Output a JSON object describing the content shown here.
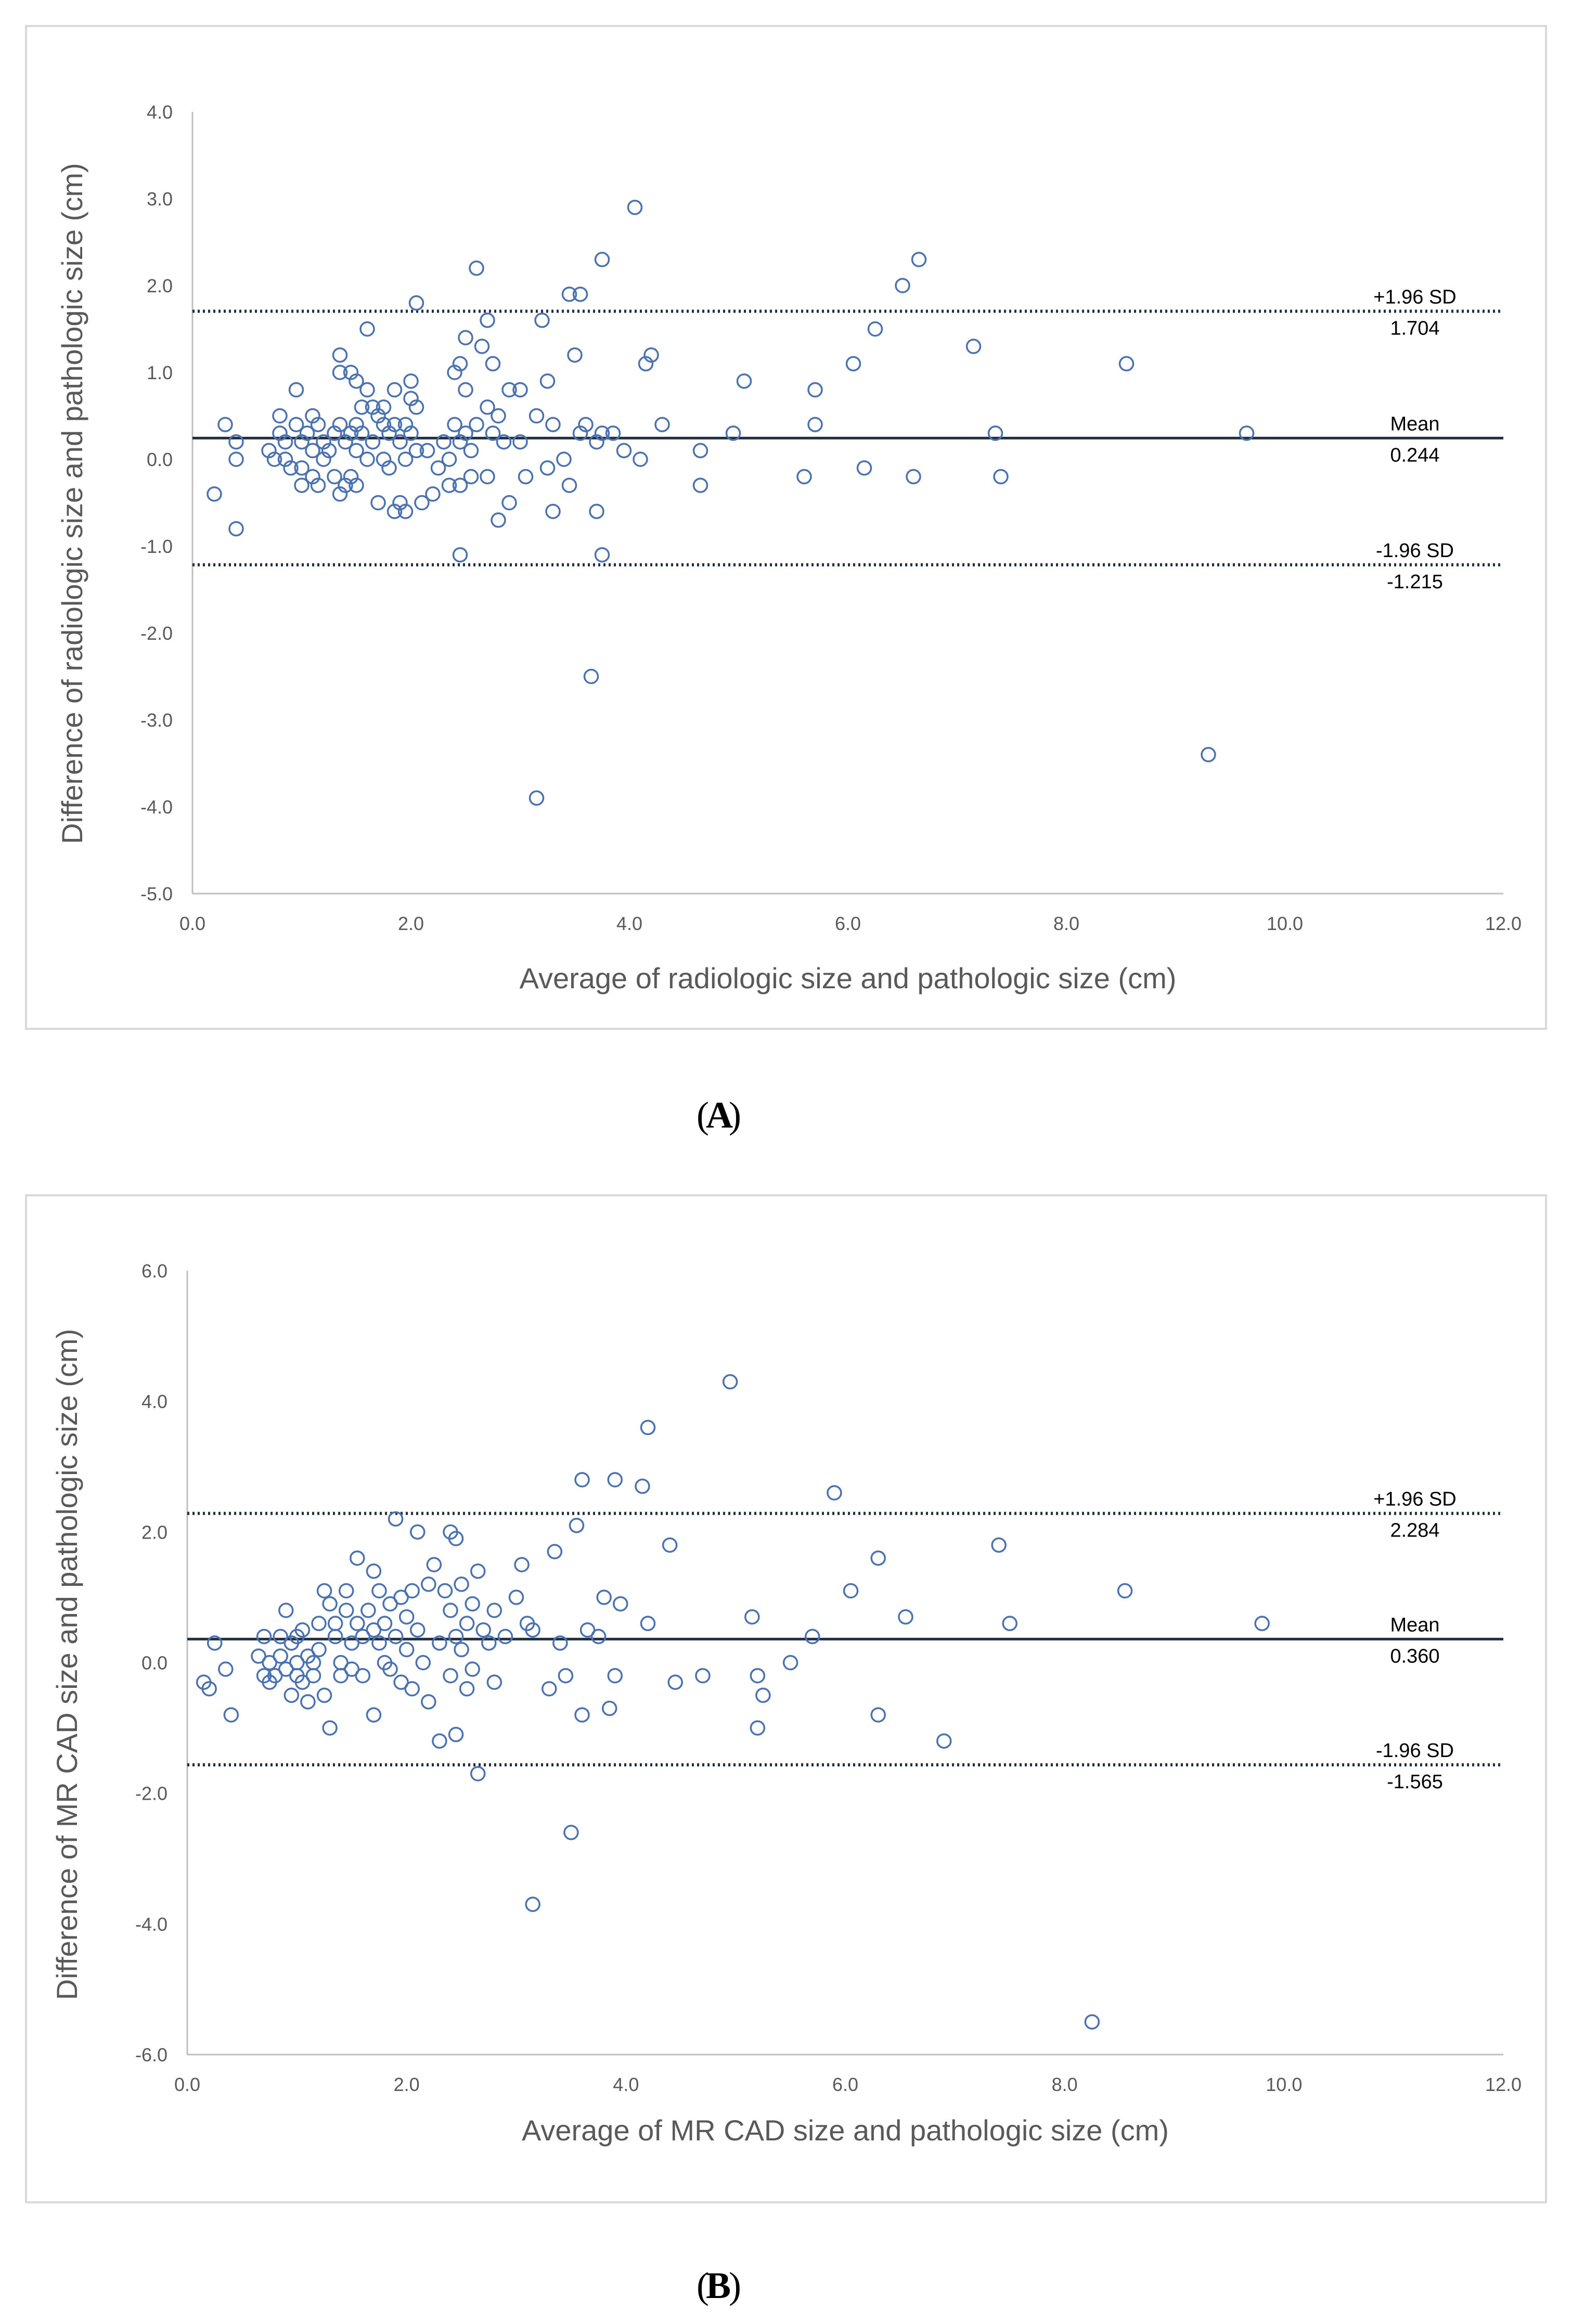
{
  "colors": {
    "marker": "#4a72b0",
    "mean_line": "#1f2d40",
    "limit_line": "#1f2d40",
    "axis": "#bfbfbf",
    "frame": "#d9d9d9"
  },
  "chart_data": [
    {
      "type": "scatter",
      "panel_label": "A",
      "xlabel": "Average of radiologic size and pathologic size (cm)",
      "ylabel": "Difference of radiologic size and pathologic size  (cm)",
      "xlim": [
        0,
        12
      ],
      "ylim": [
        -5,
        4
      ],
      "xticks": [
        0,
        2,
        4,
        6,
        8,
        10,
        12
      ],
      "yticks": [
        4,
        3,
        2,
        1,
        0,
        -1,
        -2,
        -3,
        -4,
        -5
      ],
      "reference_lines": [
        {
          "name": "upper",
          "label": "+1.96 SD",
          "value_label": "1.704",
          "value": 1.704
        },
        {
          "name": "mean",
          "label": "Mean",
          "value_label": "0.244",
          "value": 0.244
        },
        {
          "name": "lower",
          "label": "-1.96 SD",
          "value_label": "-1.215",
          "value": -1.215
        }
      ],
      "points": [
        [
          0.2,
          -0.4
        ],
        [
          0.3,
          0.4
        ],
        [
          0.4,
          0.2
        ],
        [
          0.4,
          0.0
        ],
        [
          0.4,
          -0.8
        ],
        [
          0.7,
          0.1
        ],
        [
          0.75,
          0.0
        ],
        [
          0.8,
          0.3
        ],
        [
          0.8,
          0.5
        ],
        [
          0.85,
          0.2
        ],
        [
          0.85,
          0.0
        ],
        [
          0.9,
          -0.1
        ],
        [
          0.95,
          0.8
        ],
        [
          0.95,
          0.4
        ],
        [
          1.0,
          0.2
        ],
        [
          1.0,
          -0.1
        ],
        [
          1.0,
          -0.3
        ],
        [
          1.05,
          0.3
        ],
        [
          1.1,
          0.5
        ],
        [
          1.1,
          0.1
        ],
        [
          1.1,
          -0.2
        ],
        [
          1.15,
          0.4
        ],
        [
          1.15,
          -0.3
        ],
        [
          1.2,
          0.2
        ],
        [
          1.2,
          0.0
        ],
        [
          1.25,
          0.1
        ],
        [
          1.3,
          0.3
        ],
        [
          1.3,
          -0.2
        ],
        [
          1.35,
          1.2
        ],
        [
          1.35,
          1.0
        ],
        [
          1.35,
          0.4
        ],
        [
          1.35,
          -0.4
        ],
        [
          1.4,
          0.2
        ],
        [
          1.4,
          -0.3
        ],
        [
          1.45,
          1.0
        ],
        [
          1.45,
          0.3
        ],
        [
          1.45,
          -0.2
        ],
        [
          1.5,
          0.9
        ],
        [
          1.5,
          0.4
        ],
        [
          1.5,
          0.1
        ],
        [
          1.5,
          -0.3
        ],
        [
          1.55,
          0.6
        ],
        [
          1.55,
          0.3
        ],
        [
          1.6,
          1.5
        ],
        [
          1.6,
          0.8
        ],
        [
          1.6,
          0.0
        ],
        [
          1.65,
          0.6
        ],
        [
          1.65,
          0.2
        ],
        [
          1.7,
          0.5
        ],
        [
          1.7,
          -0.5
        ],
        [
          1.75,
          0.6
        ],
        [
          1.75,
          0.4
        ],
        [
          1.75,
          0.0
        ],
        [
          1.8,
          0.3
        ],
        [
          1.8,
          -0.1
        ],
        [
          1.85,
          0.8
        ],
        [
          1.85,
          0.4
        ],
        [
          1.85,
          -0.6
        ],
        [
          1.9,
          0.2
        ],
        [
          1.9,
          -0.5
        ],
        [
          1.95,
          0.4
        ],
        [
          1.95,
          0.0
        ],
        [
          1.95,
          -0.6
        ],
        [
          2.0,
          0.9
        ],
        [
          2.0,
          0.7
        ],
        [
          2.0,
          0.3
        ],
        [
          2.05,
          1.8
        ],
        [
          2.05,
          0.6
        ],
        [
          2.05,
          0.1
        ],
        [
          2.1,
          -0.5
        ],
        [
          2.15,
          0.1
        ],
        [
          2.2,
          -0.4
        ],
        [
          2.25,
          -0.1
        ],
        [
          2.3,
          0.2
        ],
        [
          2.35,
          0.0
        ],
        [
          2.35,
          -0.3
        ],
        [
          2.4,
          1.0
        ],
        [
          2.4,
          0.4
        ],
        [
          2.45,
          1.1
        ],
        [
          2.45,
          0.2
        ],
        [
          2.45,
          -0.3
        ],
        [
          2.5,
          1.4
        ],
        [
          2.5,
          0.8
        ],
        [
          2.5,
          0.3
        ],
        [
          2.55,
          0.1
        ],
        [
          2.55,
          -0.2
        ],
        [
          2.6,
          2.2
        ],
        [
          2.6,
          0.4
        ],
        [
          2.65,
          1.3
        ],
        [
          2.7,
          1.6
        ],
        [
          2.7,
          0.6
        ],
        [
          2.7,
          -0.2
        ],
        [
          2.75,
          1.1
        ],
        [
          2.75,
          0.3
        ],
        [
          2.8,
          0.5
        ],
        [
          2.8,
          -0.7
        ],
        [
          2.85,
          0.2
        ],
        [
          2.9,
          0.8
        ],
        [
          2.9,
          -0.5
        ],
        [
          3.0,
          0.8
        ],
        [
          3.0,
          0.2
        ],
        [
          3.05,
          -0.2
        ],
        [
          3.15,
          0.5
        ],
        [
          3.2,
          1.6
        ],
        [
          3.25,
          0.9
        ],
        [
          3.25,
          -0.1
        ],
        [
          3.3,
          0.4
        ],
        [
          3.3,
          -0.6
        ],
        [
          3.4,
          0.0
        ],
        [
          3.45,
          1.9
        ],
        [
          3.45,
          -0.3
        ],
        [
          3.5,
          1.2
        ],
        [
          3.55,
          1.9
        ],
        [
          3.55,
          0.3
        ],
        [
          3.6,
          0.4
        ],
        [
          3.7,
          0.2
        ],
        [
          3.7,
          -0.6
        ],
        [
          3.75,
          2.3
        ],
        [
          3.75,
          0.3
        ],
        [
          3.75,
          -1.1
        ],
        [
          3.85,
          0.3
        ],
        [
          3.95,
          0.1
        ],
        [
          4.05,
          2.9
        ],
        [
          4.1,
          0.0
        ],
        [
          4.15,
          1.1
        ],
        [
          4.2,
          1.2
        ],
        [
          4.3,
          0.4
        ],
        [
          2.45,
          -1.1
        ],
        [
          3.15,
          -3.9
        ],
        [
          3.65,
          -2.5
        ],
        [
          4.65,
          0.1
        ],
        [
          4.65,
          -0.3
        ],
        [
          4.95,
          0.3
        ],
        [
          5.05,
          0.9
        ],
        [
          5.6,
          -0.2
        ],
        [
          5.7,
          0.8
        ],
        [
          5.7,
          0.4
        ],
        [
          6.05,
          1.1
        ],
        [
          6.15,
          -0.1
        ],
        [
          6.25,
          1.5
        ],
        [
          6.5,
          2.0
        ],
        [
          6.6,
          -0.2
        ],
        [
          6.65,
          2.3
        ],
        [
          7.15,
          1.3
        ],
        [
          7.35,
          0.3
        ],
        [
          7.4,
          -0.2
        ],
        [
          8.55,
          1.1
        ],
        [
          9.3,
          -3.4
        ],
        [
          9.65,
          0.3
        ]
      ]
    },
    {
      "type": "scatter",
      "panel_label": "B",
      "xlabel": "Average of MR CAD size and pathologic size (cm)",
      "ylabel": "Difference of MR CAD size and pathologic size (cm)",
      "xlim": [
        0,
        12
      ],
      "ylim": [
        -6,
        6
      ],
      "xticks": [
        0,
        2,
        4,
        6,
        8,
        10,
        12
      ],
      "yticks": [
        6,
        4,
        2,
        0,
        -2,
        -4,
        -6
      ],
      "reference_lines": [
        {
          "name": "upper",
          "label": "+1.96 SD",
          "value_label": "2.284",
          "value": 2.284
        },
        {
          "name": "mean",
          "label": "Mean",
          "value_label": "0.360",
          "value": 0.36
        },
        {
          "name": "lower",
          "label": "-1.96 SD",
          "value_label": "-1.565",
          "value": -1.565
        }
      ],
      "points": [
        [
          0.15,
          -0.3
        ],
        [
          0.2,
          -0.4
        ],
        [
          0.25,
          0.3
        ],
        [
          0.35,
          -0.1
        ],
        [
          0.4,
          -0.8
        ],
        [
          0.65,
          0.1
        ],
        [
          0.7,
          0.4
        ],
        [
          0.7,
          -0.2
        ],
        [
          0.75,
          0.0
        ],
        [
          0.75,
          -0.3
        ],
        [
          0.8,
          -0.2
        ],
        [
          0.85,
          0.4
        ],
        [
          0.85,
          0.1
        ],
        [
          0.9,
          0.8
        ],
        [
          0.9,
          -0.1
        ],
        [
          0.95,
          0.3
        ],
        [
          0.95,
          -0.5
        ],
        [
          1.0,
          0.4
        ],
        [
          1.0,
          0.0
        ],
        [
          1.0,
          -0.2
        ],
        [
          1.05,
          0.5
        ],
        [
          1.05,
          -0.3
        ],
        [
          1.1,
          0.1
        ],
        [
          1.1,
          -0.6
        ],
        [
          1.15,
          0.0
        ],
        [
          1.15,
          -0.2
        ],
        [
          1.2,
          0.2
        ],
        [
          1.2,
          0.6
        ],
        [
          1.25,
          1.1
        ],
        [
          1.25,
          -0.5
        ],
        [
          1.3,
          0.9
        ],
        [
          1.3,
          -1.0
        ],
        [
          1.35,
          0.4
        ],
        [
          1.35,
          0.6
        ],
        [
          1.4,
          0.0
        ],
        [
          1.4,
          -0.2
        ],
        [
          1.45,
          0.8
        ],
        [
          1.45,
          1.1
        ],
        [
          1.5,
          0.3
        ],
        [
          1.5,
          -0.1
        ],
        [
          1.55,
          1.6
        ],
        [
          1.55,
          0.6
        ],
        [
          1.6,
          0.4
        ],
        [
          1.6,
          -0.2
        ],
        [
          1.65,
          0.8
        ],
        [
          1.7,
          1.4
        ],
        [
          1.7,
          0.5
        ],
        [
          1.7,
          -0.8
        ],
        [
          1.75,
          1.1
        ],
        [
          1.75,
          0.3
        ],
        [
          1.8,
          0.6
        ],
        [
          1.8,
          0.0
        ],
        [
          1.85,
          0.9
        ],
        [
          1.85,
          -0.1
        ],
        [
          1.9,
          2.2
        ],
        [
          1.9,
          0.4
        ],
        [
          1.95,
          1.0
        ],
        [
          1.95,
          -0.3
        ],
        [
          2.0,
          0.7
        ],
        [
          2.0,
          0.2
        ],
        [
          2.05,
          1.1
        ],
        [
          2.05,
          -0.4
        ],
        [
          2.1,
          2.0
        ],
        [
          2.1,
          0.5
        ],
        [
          2.15,
          0.0
        ],
        [
          2.2,
          1.2
        ],
        [
          2.2,
          -0.6
        ],
        [
          2.25,
          1.5
        ],
        [
          2.3,
          0.3
        ],
        [
          2.3,
          -1.2
        ],
        [
          2.35,
          1.1
        ],
        [
          2.4,
          2.0
        ],
        [
          2.4,
          0.8
        ],
        [
          2.4,
          -0.2
        ],
        [
          2.45,
          1.9
        ],
        [
          2.45,
          0.4
        ],
        [
          2.45,
          -1.1
        ],
        [
          2.5,
          1.2
        ],
        [
          2.5,
          0.2
        ],
        [
          2.55,
          0.6
        ],
        [
          2.55,
          -0.4
        ],
        [
          2.6,
          0.9
        ],
        [
          2.6,
          -0.1
        ],
        [
          2.65,
          1.4
        ],
        [
          2.65,
          -1.7
        ],
        [
          2.7,
          0.5
        ],
        [
          2.75,
          0.3
        ],
        [
          2.8,
          0.8
        ],
        [
          2.8,
          -0.3
        ],
        [
          2.9,
          0.4
        ],
        [
          3.0,
          1.0
        ],
        [
          3.05,
          1.5
        ],
        [
          3.1,
          0.6
        ],
        [
          3.15,
          0.5
        ],
        [
          3.15,
          -3.7
        ],
        [
          3.3,
          -0.4
        ],
        [
          3.35,
          1.7
        ],
        [
          3.4,
          0.3
        ],
        [
          3.45,
          -0.2
        ],
        [
          3.5,
          -2.6
        ],
        [
          3.55,
          2.1
        ],
        [
          3.6,
          2.8
        ],
        [
          3.6,
          -0.8
        ],
        [
          3.65,
          0.5
        ],
        [
          3.75,
          0.4
        ],
        [
          3.8,
          1.0
        ],
        [
          3.85,
          -0.7
        ],
        [
          3.9,
          2.8
        ],
        [
          3.9,
          -0.2
        ],
        [
          3.95,
          0.9
        ],
        [
          4.15,
          2.7
        ],
        [
          4.2,
          3.6
        ],
        [
          4.2,
          0.6
        ],
        [
          4.4,
          1.8
        ],
        [
          4.45,
          -0.3
        ],
        [
          4.7,
          -0.2
        ],
        [
          4.95,
          4.3
        ],
        [
          5.15,
          0.7
        ],
        [
          5.2,
          -0.2
        ],
        [
          5.2,
          -1.0
        ],
        [
          5.25,
          -0.5
        ],
        [
          5.5,
          0.0
        ],
        [
          5.7,
          0.4
        ],
        [
          5.9,
          2.6
        ],
        [
          6.05,
          1.1
        ],
        [
          6.3,
          1.6
        ],
        [
          6.3,
          -0.8
        ],
        [
          6.55,
          0.7
        ],
        [
          6.9,
          -1.2
        ],
        [
          7.4,
          1.8
        ],
        [
          7.5,
          0.6
        ],
        [
          8.25,
          -5.5
        ],
        [
          8.55,
          1.1
        ],
        [
          9.8,
          0.6
        ]
      ]
    }
  ]
}
